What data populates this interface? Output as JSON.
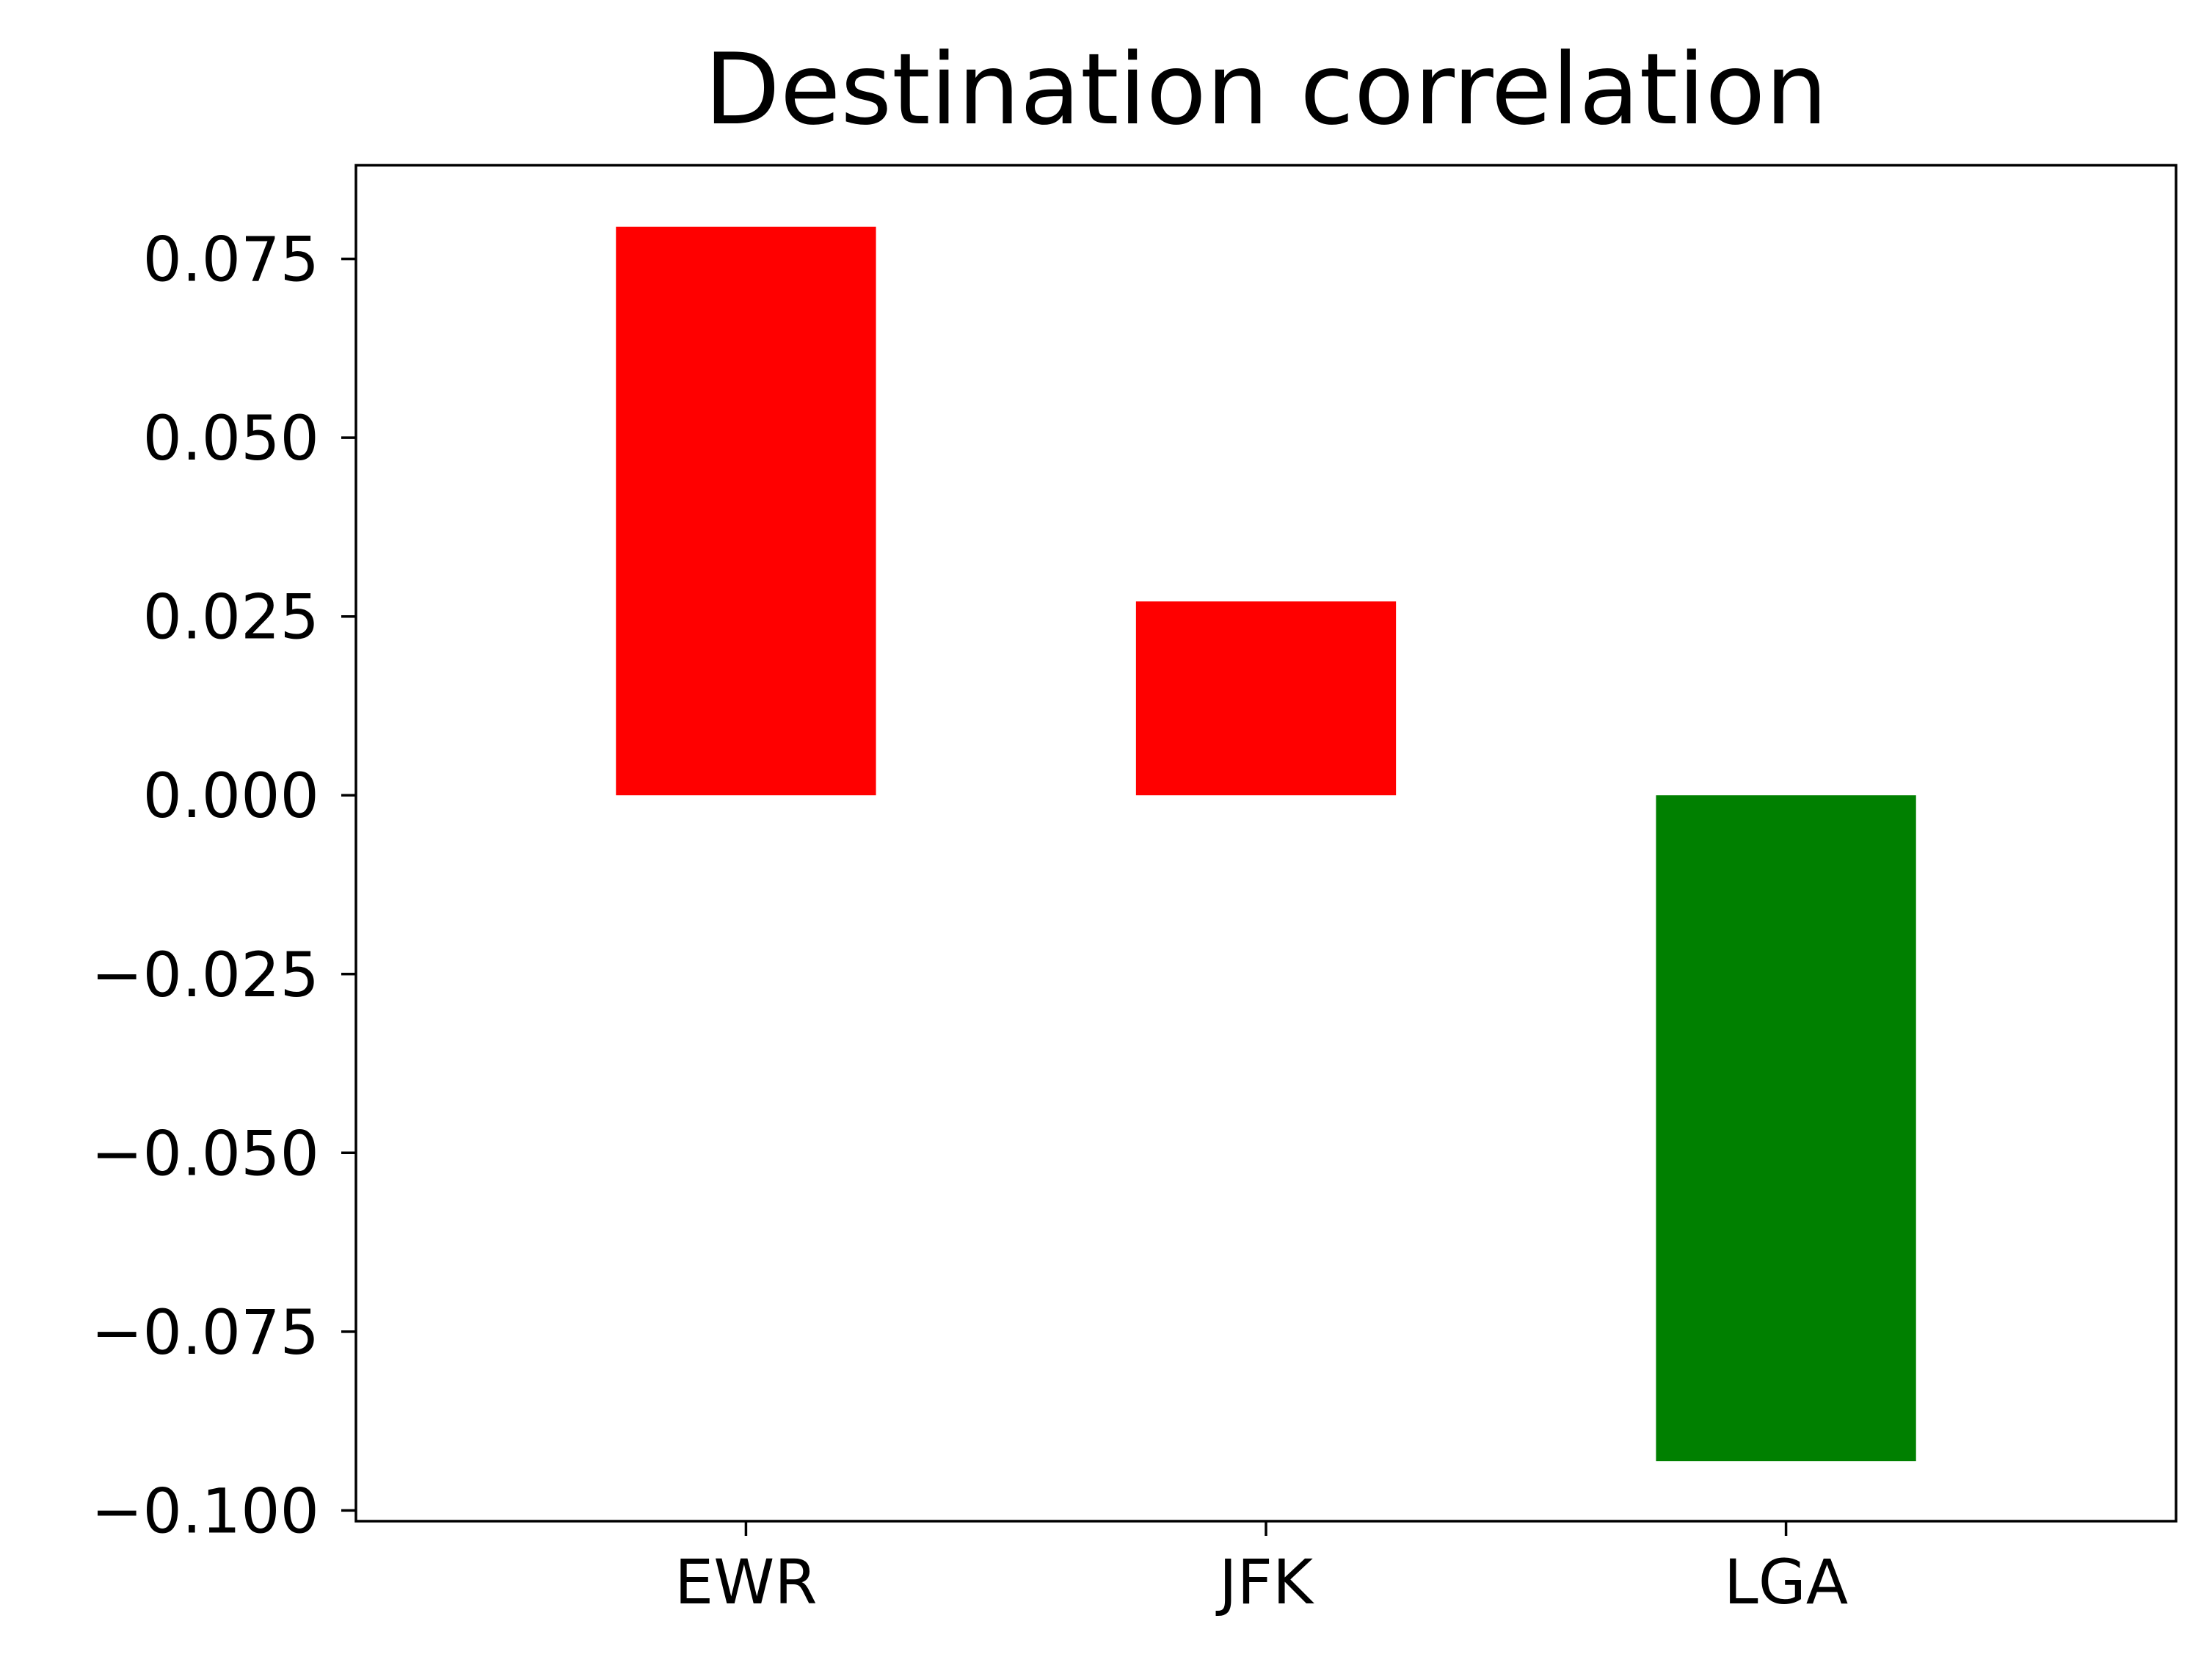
{
  "chart_data": {
    "type": "bar",
    "title": "Destination correlation",
    "xlabel": "",
    "ylabel": "",
    "categories": [
      "EWR",
      "JFK",
      "LGA"
    ],
    "values": [
      0.0795,
      0.0271,
      -0.0931
    ],
    "bar_colors": [
      "#ff0000",
      "#ff0000",
      "#008000"
    ],
    "ylim": [
      -0.1015,
      0.0881
    ],
    "yticks": [
      0.075,
      0.05,
      0.025,
      0.0,
      -0.025,
      -0.05,
      -0.075,
      -0.1
    ],
    "ytick_labels": [
      "0.075",
      "0.050",
      "0.025",
      "0.000",
      "−0.025",
      "−0.050",
      "−0.075",
      "−0.100"
    ],
    "grid": false,
    "legend": "none"
  }
}
